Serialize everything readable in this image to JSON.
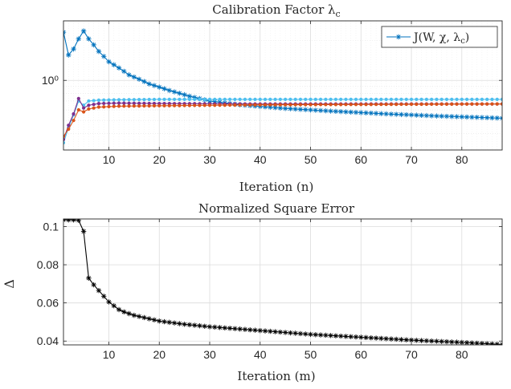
{
  "chart_data": [
    {
      "type": "line",
      "title": "Calibration Factor λ",
      "title_subscript": "c",
      "xlabel": "Iteration (n)",
      "ylabel": "",
      "xlim": [
        1,
        88
      ],
      "ylim": [
        0.3,
        2.8
      ],
      "yscale": "log",
      "xticks": [
        10,
        20,
        30,
        40,
        50,
        60,
        70,
        80
      ],
      "yticks": [
        1
      ],
      "ytick_labels": [
        "10⁰"
      ],
      "grid": true,
      "legend": {
        "position": "top-right",
        "label": "J(W, χ, λ",
        "label_subscript": "c",
        "label_close": ")"
      },
      "series": [
        {
          "name": "J(W, χ, λc)",
          "color": "#0072BD",
          "marker": "asterisk",
          "keypoints": [
            [
              1,
              2.3
            ],
            [
              2,
              1.55
            ],
            [
              3,
              1.72
            ],
            [
              4,
              2.05
            ],
            [
              5,
              2.35
            ],
            [
              6,
              2.05
            ],
            [
              8,
              1.65
            ],
            [
              10,
              1.38
            ],
            [
              14,
              1.1
            ],
            [
              18,
              0.94
            ],
            [
              22,
              0.84
            ],
            [
              26,
              0.76
            ],
            [
              30,
              0.7
            ],
            [
              36,
              0.655
            ],
            [
              45,
              0.615
            ],
            [
              55,
              0.585
            ],
            [
              65,
              0.56
            ],
            [
              75,
              0.54
            ],
            [
              88,
              0.52
            ]
          ]
        },
        {
          "name": "",
          "color": "#4DBEEE",
          "marker": "dot",
          "keypoints": [
            [
              1,
              0.34
            ],
            [
              2,
              0.44
            ],
            [
              3,
              0.55
            ],
            [
              4,
              0.7
            ],
            [
              5,
              0.65
            ],
            [
              6,
              0.7
            ],
            [
              8,
              0.71
            ],
            [
              12,
              0.715
            ],
            [
              20,
              0.72
            ],
            [
              40,
              0.72
            ],
            [
              88,
              0.72
            ]
          ]
        },
        {
          "name": "",
          "color": "#7E2F8E",
          "marker": "dot",
          "keypoints": [
            [
              1,
              0.36
            ],
            [
              2,
              0.46
            ],
            [
              3,
              0.56
            ],
            [
              4,
              0.73
            ],
            [
              5,
              0.62
            ],
            [
              6,
              0.65
            ],
            [
              8,
              0.67
            ],
            [
              12,
              0.675
            ],
            [
              20,
              0.67
            ],
            [
              40,
              0.665
            ],
            [
              88,
              0.665
            ]
          ]
        },
        {
          "name": "",
          "color": "#D95319",
          "marker": "dot",
          "keypoints": [
            [
              1,
              0.38
            ],
            [
              2,
              0.43
            ],
            [
              3,
              0.5
            ],
            [
              4,
              0.6
            ],
            [
              5,
              0.58
            ],
            [
              6,
              0.61
            ],
            [
              8,
              0.63
            ],
            [
              12,
              0.64
            ],
            [
              20,
              0.645
            ],
            [
              40,
              0.655
            ],
            [
              88,
              0.665
            ]
          ]
        }
      ]
    },
    {
      "type": "line",
      "title": "Normalized Square Error",
      "xlabel": "Iteration (m)",
      "ylabel": "Δ",
      "xlim": [
        1,
        88
      ],
      "ylim": [
        0.038,
        0.104
      ],
      "xticks": [
        10,
        20,
        30,
        40,
        50,
        60,
        70,
        80
      ],
      "yticks": [
        0.04,
        0.06,
        0.08,
        0.1
      ],
      "ytick_labels": [
        "0.04",
        "0.06",
        "0.08",
        "0.1"
      ],
      "grid": true,
      "series": [
        {
          "name": "",
          "color": "#000000",
          "marker": "asterisk",
          "keypoints": [
            [
              1,
              0.1035
            ],
            [
              2,
              0.1035
            ],
            [
              3,
              0.1035
            ],
            [
              4,
              0.1033
            ],
            [
              5,
              0.0975
            ],
            [
              6,
              0.073
            ],
            [
              7,
              0.0695
            ],
            [
              8,
              0.0665
            ],
            [
              9,
              0.0635
            ],
            [
              10,
              0.0605
            ],
            [
              11,
              0.0585
            ],
            [
              12,
              0.0565
            ],
            [
              13,
              0.0553
            ],
            [
              15,
              0.0535
            ],
            [
              20,
              0.0505
            ],
            [
              25,
              0.0488
            ],
            [
              30,
              0.0475
            ],
            [
              40,
              0.0455
            ],
            [
              50,
              0.0435
            ],
            [
              60,
              0.042
            ],
            [
              70,
              0.0405
            ],
            [
              80,
              0.0393
            ],
            [
              88,
              0.0382
            ]
          ]
        }
      ]
    }
  ]
}
